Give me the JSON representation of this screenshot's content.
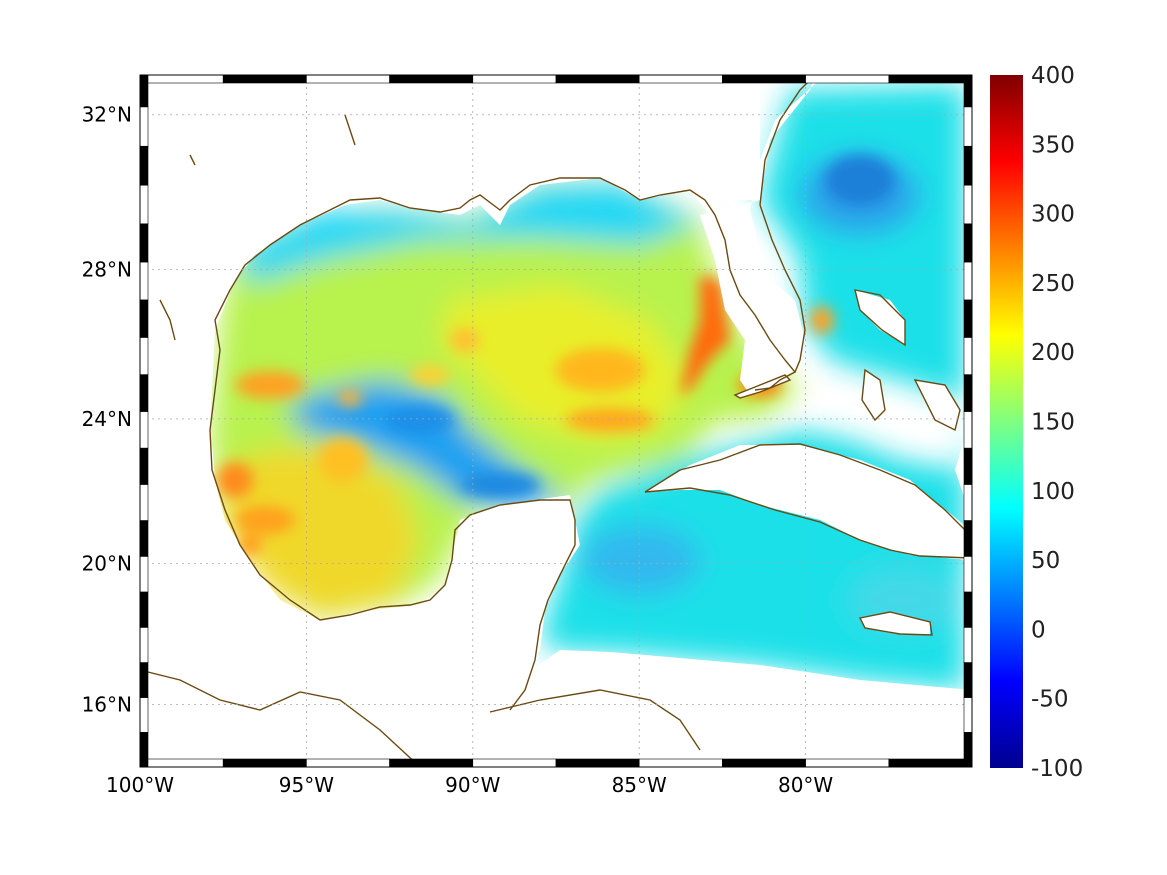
{
  "map": {
    "projection": "mercator",
    "lon_range": [
      -100,
      -75
    ],
    "lat_range": [
      14.2,
      33
    ],
    "x_ticks": [
      {
        "lon": -100,
        "label": "100°W"
      },
      {
        "lon": -95,
        "label": "95°W"
      },
      {
        "lon": -90,
        "label": "90°W"
      },
      {
        "lon": -85,
        "label": "85°W"
      },
      {
        "lon": -80,
        "label": "80°W"
      }
    ],
    "y_ticks": [
      {
        "lat": 16,
        "label": "16°N"
      },
      {
        "lat": 20,
        "label": "20°N"
      },
      {
        "lat": 24,
        "label": "24°N"
      },
      {
        "lat": 28,
        "label": "28°N"
      },
      {
        "lat": 32,
        "label": "32°N"
      }
    ],
    "grid": true,
    "frame": "black-white-dashed",
    "coastline_color": "#6b4a12",
    "land_color": "#ffffff"
  },
  "colorbar": {
    "colormap": "jet",
    "range": [
      -100,
      400
    ],
    "position": "right",
    "ticks": [
      "400",
      "350",
      "300",
      "250",
      "200",
      "150",
      "100",
      "50",
      "0",
      "-50",
      "-100"
    ]
  }
}
